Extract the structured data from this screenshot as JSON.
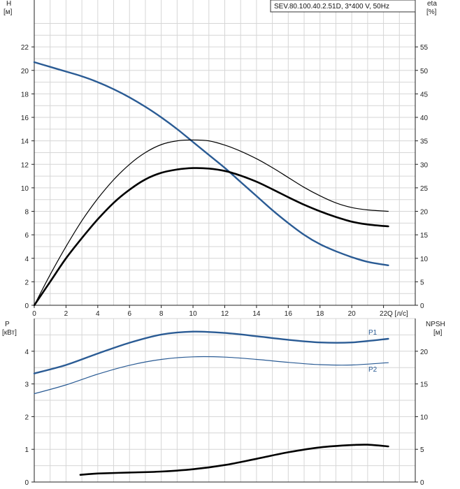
{
  "model_label": "SEV.80.100.40.2.51D, 3*400 V, 50Hz",
  "colors": {
    "blue": "#2a5b94",
    "black": "#000000",
    "grid": "#d6d6d6",
    "frame": "#222222"
  },
  "chart_data": [
    {
      "type": "line",
      "panel": "top",
      "y_left_label": [
        "H",
        "[м]"
      ],
      "y_right_label": [
        "eta",
        "[%]"
      ],
      "x_label": "Q [л/с]",
      "x_range": [
        0,
        24
      ],
      "x_ticks": [
        0,
        2,
        4,
        6,
        8,
        10,
        12,
        14,
        16,
        18,
        20,
        22
      ],
      "y_left_range": [
        0,
        24
      ],
      "y_left_ticks": [
        0,
        2,
        4,
        6,
        8,
        10,
        12,
        14,
        16,
        18,
        20,
        22
      ],
      "y_right_range": [
        0,
        60
      ],
      "y_right_ticks": [
        0,
        5,
        10,
        15,
        20,
        25,
        30,
        35,
        40,
        45,
        50,
        55
      ],
      "grid": true,
      "series": [
        {
          "axis": "left",
          "style": "blue-thick",
          "x": [
            0,
            1,
            2,
            3,
            4,
            5,
            6,
            7,
            8,
            9,
            10,
            11,
            12,
            13,
            14,
            15,
            16,
            17,
            18,
            19,
            20,
            21,
            22.3
          ],
          "y": [
            20.7,
            20.3,
            19.9,
            19.5,
            19.0,
            18.4,
            17.7,
            16.9,
            16.0,
            15.0,
            13.9,
            12.8,
            11.7,
            10.5,
            9.3,
            8.1,
            7.0,
            6.0,
            5.2,
            4.6,
            4.1,
            3.7,
            3.4
          ]
        },
        {
          "axis": "right",
          "style": "black-thin",
          "x": [
            0,
            1,
            2,
            3,
            4,
            5,
            6,
            7,
            8,
            9,
            10,
            11,
            12,
            13,
            14,
            15,
            16,
            17,
            18,
            19,
            20,
            21,
            22.3
          ],
          "y": [
            0,
            6.5,
            12.5,
            18,
            22.7,
            26.7,
            30,
            32.5,
            34.2,
            35,
            35.2,
            35,
            34.1,
            32.8,
            31.2,
            29.3,
            27.2,
            25.1,
            23.3,
            21.8,
            20.8,
            20.3,
            20
          ]
        },
        {
          "axis": "right",
          "style": "black-thick",
          "x": [
            0,
            1,
            2,
            3,
            4,
            5,
            6,
            7,
            8,
            9,
            10,
            11,
            12,
            13,
            14,
            15,
            16,
            17,
            18,
            19,
            20,
            21,
            22.3
          ],
          "y": [
            0,
            5,
            10,
            14.3,
            18.3,
            21.8,
            24.6,
            26.8,
            28.2,
            28.9,
            29.2,
            29.1,
            28.6,
            27.6,
            26.3,
            24.7,
            23,
            21.4,
            20,
            18.8,
            17.8,
            17.2,
            16.8
          ]
        }
      ]
    },
    {
      "type": "line",
      "panel": "bottom",
      "y_left_label": [
        "P",
        "[кВт]"
      ],
      "y_right_label": [
        "NPSH",
        "[м]"
      ],
      "x_range": [
        0,
        24
      ],
      "y_left_range": [
        0,
        5
      ],
      "y_left_ticks": [
        0,
        1,
        2,
        3,
        4
      ],
      "y_right_range": [
        0,
        25
      ],
      "y_right_ticks": [
        0,
        5,
        10,
        15,
        20
      ],
      "grid": true,
      "series": [
        {
          "name": "P1",
          "axis": "left",
          "style": "blue-thick",
          "x": [
            0,
            2,
            4,
            6,
            8,
            10,
            12,
            14,
            16,
            18,
            20,
            22.3
          ],
          "y": [
            3.32,
            3.58,
            3.93,
            4.26,
            4.51,
            4.6,
            4.56,
            4.46,
            4.35,
            4.27,
            4.27,
            4.38
          ]
        },
        {
          "name": "P2",
          "axis": "left",
          "style": "blue-thin",
          "x": [
            0,
            2,
            4,
            6,
            8,
            10,
            12,
            14,
            16,
            18,
            20,
            22.3
          ],
          "y": [
            2.7,
            2.97,
            3.3,
            3.57,
            3.75,
            3.83,
            3.82,
            3.75,
            3.66,
            3.59,
            3.58,
            3.65
          ]
        },
        {
          "axis": "right",
          "style": "black-thick",
          "x": [
            2.9,
            4,
            6,
            8,
            10,
            12,
            14,
            16,
            18,
            20,
            21,
            22.3
          ],
          "y": [
            1.1,
            1.3,
            1.45,
            1.6,
            1.95,
            2.6,
            3.55,
            4.55,
            5.3,
            5.65,
            5.7,
            5.45
          ]
        }
      ]
    }
  ]
}
